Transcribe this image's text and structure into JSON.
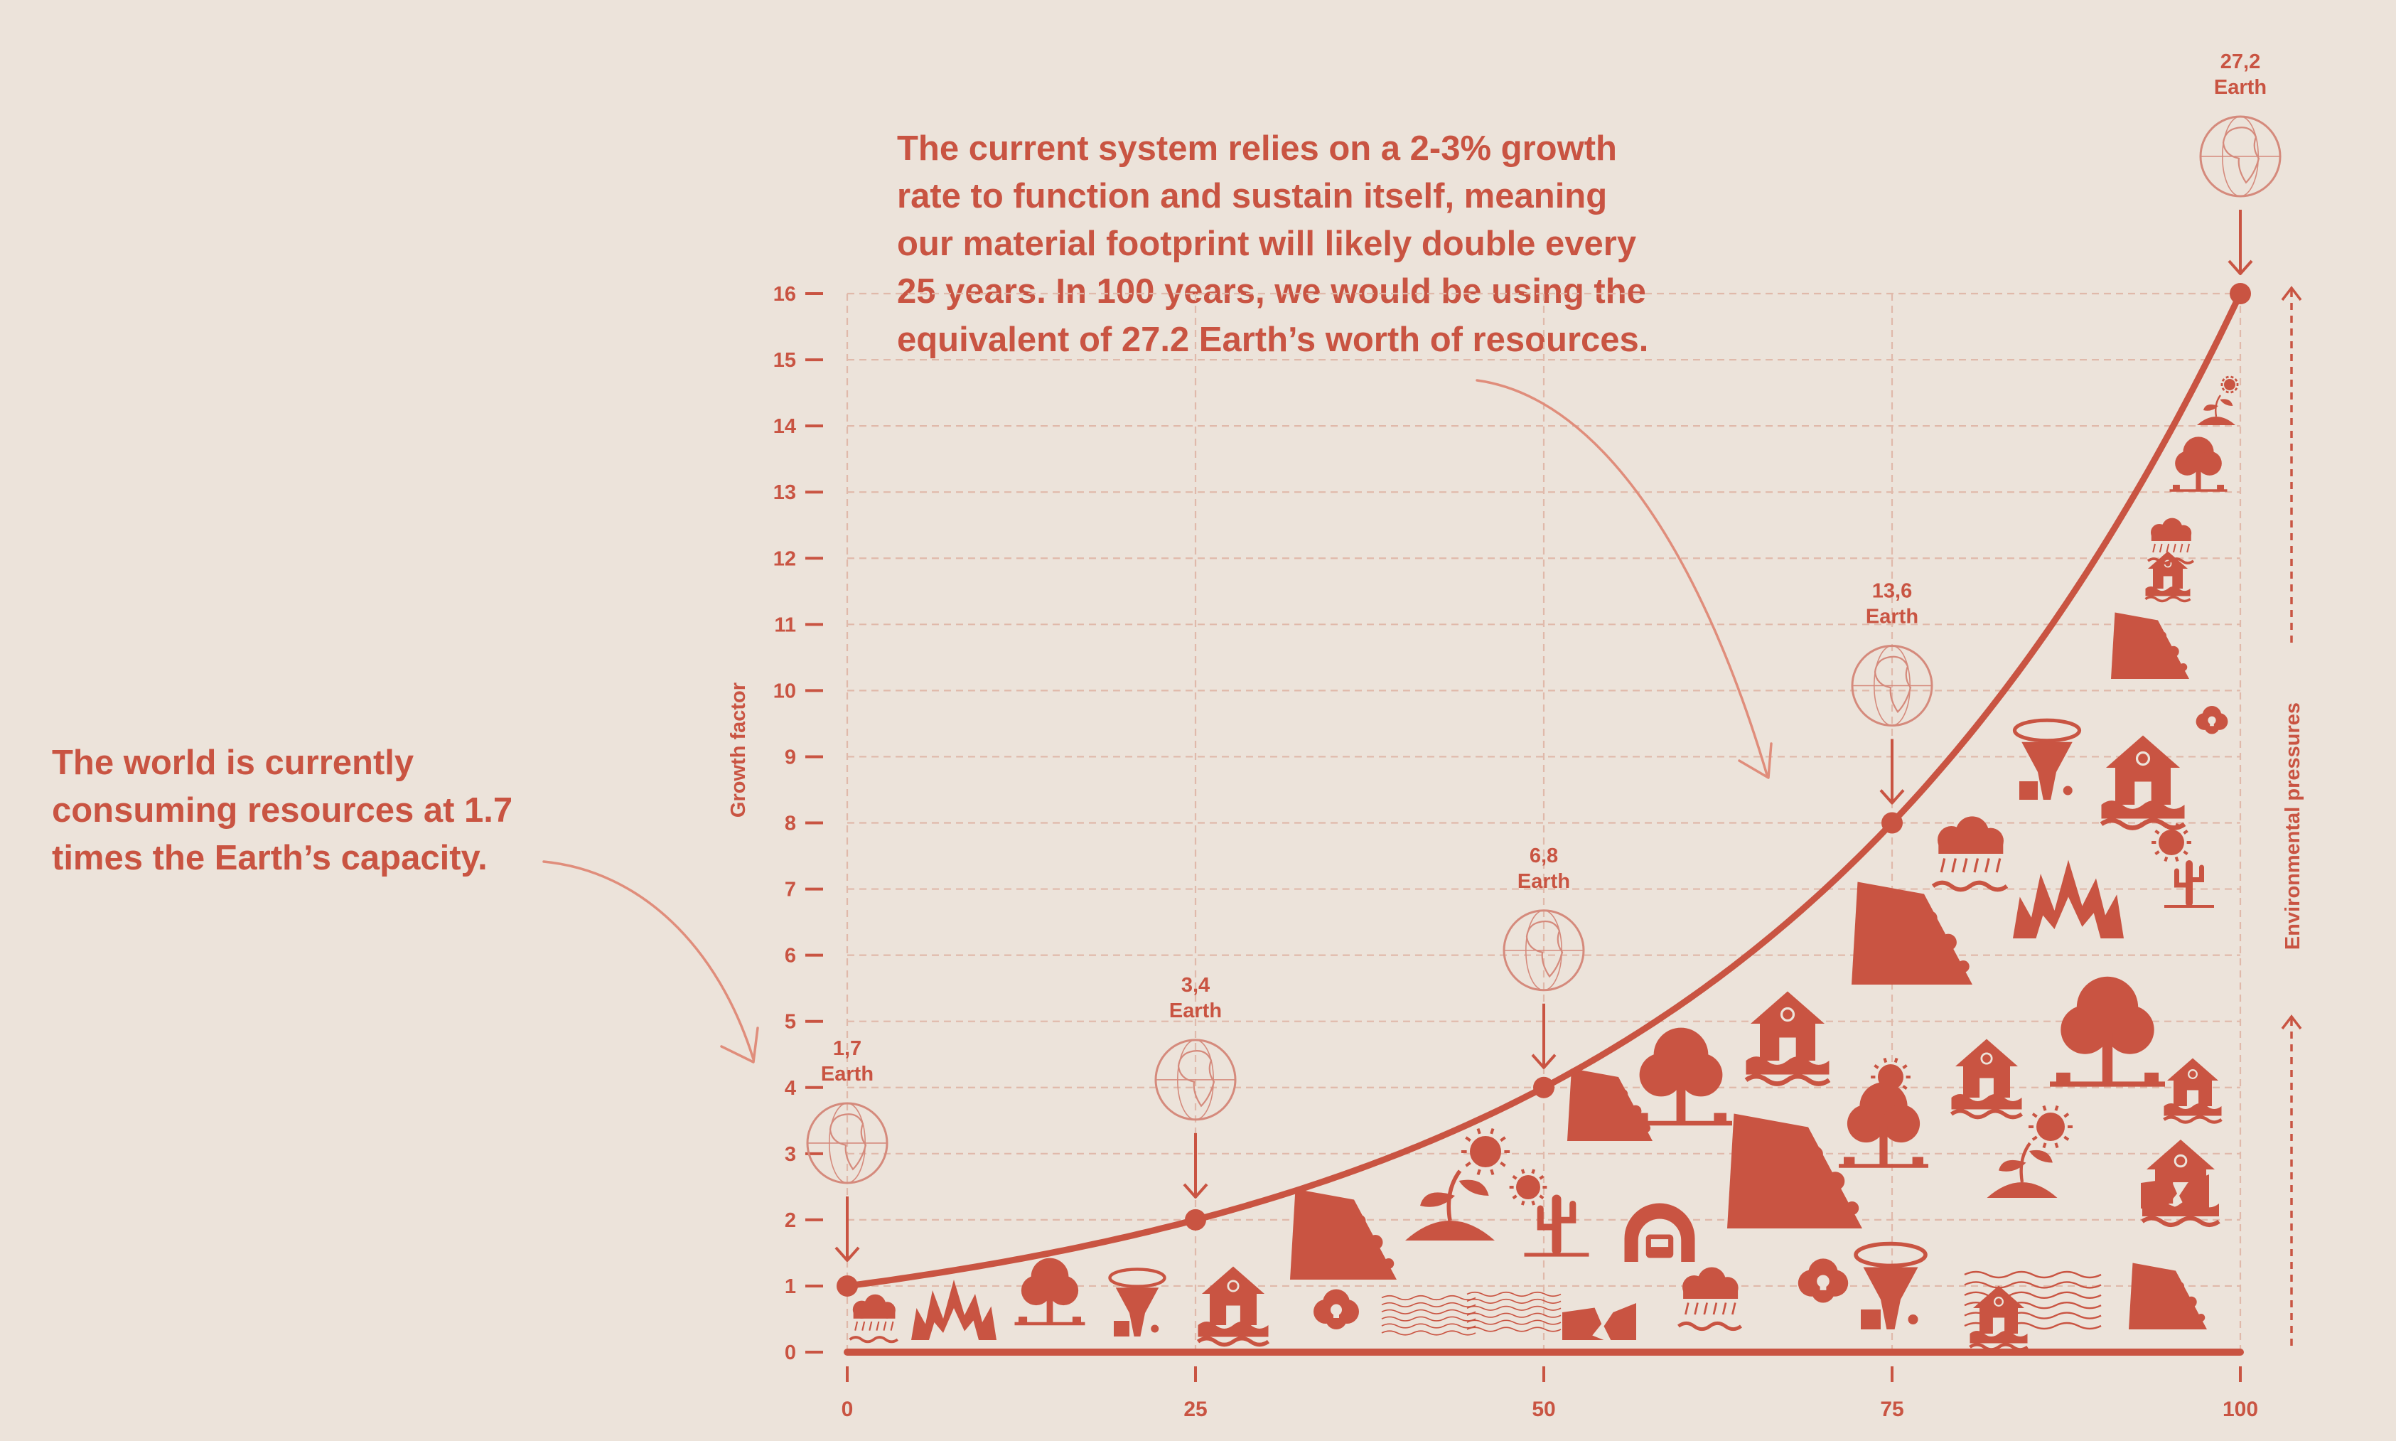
{
  "annotations": {
    "main": "The current system relies  on a 2-3% growth rate to function and sustain itself, meaning our material footprint will likely double every 25 years. In 100 years, we would be  using the equivalent of 27.2 Earth’s worth of resources.",
    "left": "The world is currently consuming resources at 1.7 times the Earth’s capacity."
  },
  "chart_data": {
    "type": "line",
    "ylabel": "Growth factor",
    "xlabel": "",
    "right_label": "Environmental pressures",
    "xlim": [
      0,
      100
    ],
    "ylim": [
      0,
      16
    ],
    "x_ticks": [
      0,
      25,
      50,
      75,
      100
    ],
    "y_ticks": [
      0,
      1,
      2,
      3,
      4,
      5,
      6,
      7,
      8,
      9,
      10,
      11,
      12,
      13,
      14,
      15,
      16
    ],
    "grid": true,
    "series": [
      {
        "x": [
          0,
          25,
          50,
          75,
          100
        ],
        "values": [
          1,
          2,
          4,
          8,
          16
        ]
      }
    ],
    "markers": [
      {
        "x": 0,
        "y": 1,
        "value": "1,7",
        "unit": "Earth"
      },
      {
        "x": 25,
        "y": 2,
        "value": "3,4",
        "unit": "Earth"
      },
      {
        "x": 50,
        "y": 4,
        "value": "6,8",
        "unit": "Earth"
      },
      {
        "x": 75,
        "y": 8,
        "value": "13,6",
        "unit": "Earth"
      },
      {
        "x": 100,
        "y": 16,
        "value": "27,2",
        "unit": "Earth"
      }
    ],
    "colors": {
      "primary": "#c95442",
      "grid": "#e0b9aa",
      "globe": "#d58a7c",
      "arrow": "#e08d7b",
      "background": "#ece3da"
    },
    "illustration_icons": [
      "rain-flood-icon",
      "wildfire-icon",
      "deforestation-icon",
      "tornado-icon",
      "flooded-house-icon",
      "toxic-cloud-icon",
      "landslide-icon",
      "drought-plant-icon",
      "sun-icon",
      "cactus-icon",
      "earthquake-icon",
      "tunnel-train-icon"
    ]
  }
}
